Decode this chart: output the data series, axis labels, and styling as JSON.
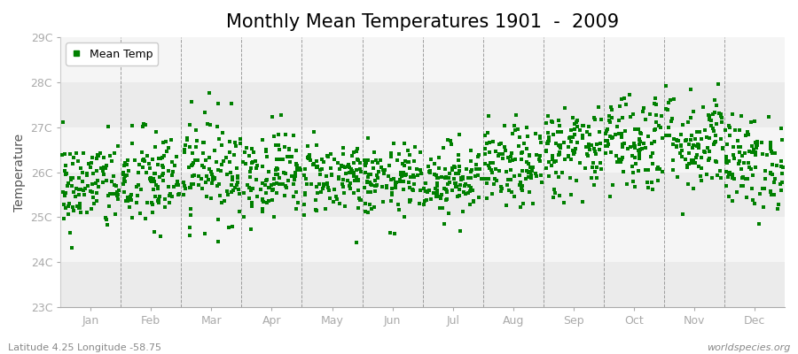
{
  "title": "Monthly Mean Temperatures 1901  -  2009",
  "ylabel": "Temperature",
  "xlabel_labels": [
    "Jan",
    "Feb",
    "Mar",
    "Apr",
    "May",
    "Jun",
    "Jul",
    "Aug",
    "Sep",
    "Oct",
    "Nov",
    "Dec"
  ],
  "ylim": [
    23.0,
    29.0
  ],
  "ytick_labels": [
    "23C",
    "24C",
    "25C",
    "26C",
    "27C",
    "28C",
    "29C"
  ],
  "ytick_values": [
    23,
    24,
    25,
    26,
    27,
    28,
    29
  ],
  "dot_color": "#008000",
  "bg_color": "#ffffff",
  "band_colors_odd": "#ebebeb",
  "band_colors_even": "#f5f5f5",
  "footer_left": "Latitude 4.25 Longitude -58.75",
  "footer_right": "worldspecies.org",
  "legend_label": "Mean Temp",
  "n_years": 109,
  "month_means": [
    25.7,
    25.8,
    26.1,
    26.0,
    25.9,
    25.8,
    25.85,
    26.1,
    26.5,
    26.7,
    26.7,
    26.2
  ],
  "month_stds": [
    0.52,
    0.58,
    0.6,
    0.48,
    0.42,
    0.4,
    0.4,
    0.45,
    0.52,
    0.58,
    0.58,
    0.52
  ],
  "title_fontsize": 15,
  "axis_fontsize": 10,
  "tick_fontsize": 9,
  "footer_fontsize": 8,
  "marker_size": 3,
  "figsize": [
    9.0,
    4.0
  ],
  "dpi": 100,
  "seed": 42
}
